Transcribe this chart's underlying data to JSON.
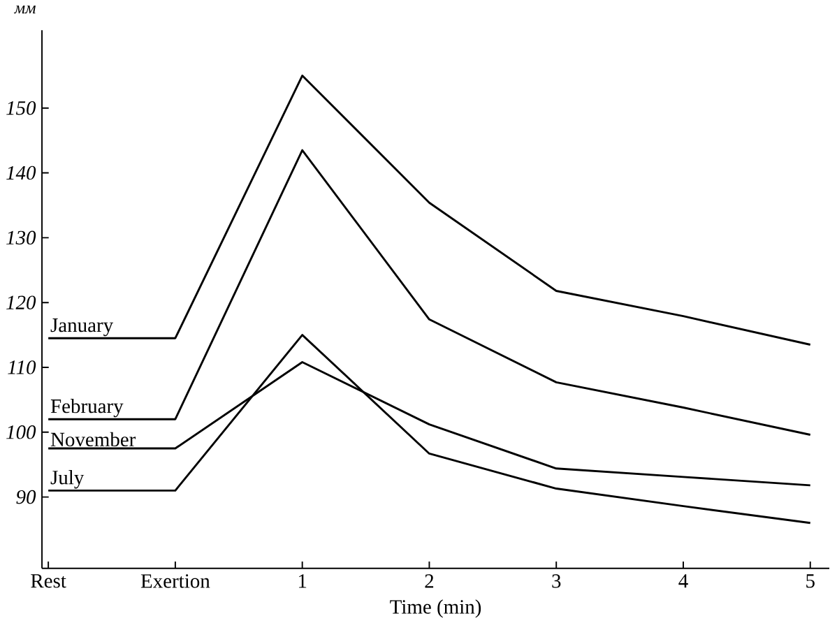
{
  "chart_data": {
    "type": "line",
    "xlabel": "Time (min)",
    "ylabel": "мм",
    "categories": [
      "Rest",
      "Exertion",
      "1",
      "2",
      "3",
      "4",
      "5"
    ],
    "ylim": [
      79,
      162
    ],
    "yticks": [
      90,
      100,
      110,
      120,
      130,
      140,
      150
    ],
    "grid": false,
    "legend": false,
    "marker": "none",
    "line_style": "solid",
    "series": [
      {
        "name": "January",
        "color": "#000000",
        "values": [
          114.5,
          114.5,
          155,
          135.4,
          121.8,
          117.9,
          113.5
        ]
      },
      {
        "name": "February",
        "color": "#000000",
        "values": [
          102,
          102,
          143.5,
          117.4,
          107.7,
          103.8,
          99.6
        ]
      },
      {
        "name": "November",
        "color": "#000000",
        "values": [
          97.5,
          97.5,
          110.8,
          101.2,
          94.4,
          93.1,
          91.8
        ]
      },
      {
        "name": "July",
        "color": "#000000",
        "values": [
          91,
          91,
          115,
          96.7,
          91.3,
          88.6,
          86
        ]
      }
    ]
  }
}
